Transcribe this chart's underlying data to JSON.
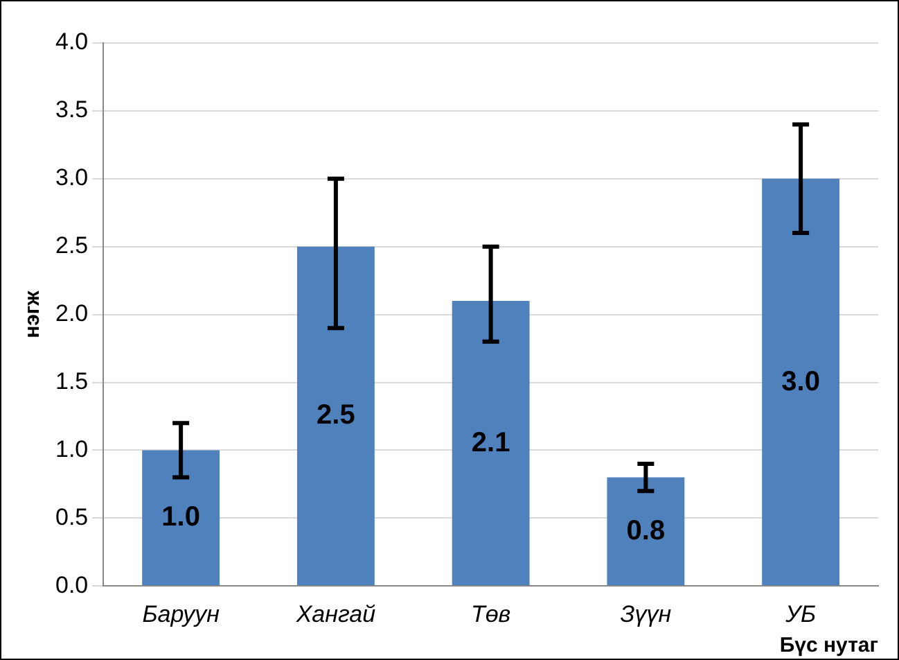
{
  "chart_data": {
    "type": "bar",
    "xlabel": "Бүс нутаг",
    "ylabel": "нэгж",
    "categories": [
      "Баруун",
      "Хангай",
      "Төв",
      "Зүүн",
      "УБ"
    ],
    "values": [
      1.0,
      2.5,
      2.1,
      0.8,
      3.0
    ],
    "errors": [
      [
        0.8,
        1.2
      ],
      [
        1.9,
        3.0
      ],
      [
        1.8,
        2.5
      ],
      [
        0.7,
        0.9
      ],
      [
        2.6,
        3.4
      ]
    ],
    "value_labels": [
      "1.0",
      "2.5",
      "2.1",
      "0.8",
      "3.0"
    ],
    "color": "#4f81bd",
    "ylim": [
      0,
      4
    ],
    "yticks": [
      {
        "value": 0,
        "label": "0.0"
      },
      {
        "value": 0.5,
        "label": "0.5"
      },
      {
        "value": 1,
        "label": "1.0"
      },
      {
        "value": 1.5,
        "label": "1.5"
      },
      {
        "value": 2,
        "label": "2.0"
      },
      {
        "value": 2.5,
        "label": "2.5"
      },
      {
        "value": 3,
        "label": "3.0"
      },
      {
        "value": 3.5,
        "label": "3.5"
      },
      {
        "value": 4,
        "label": "4.0"
      }
    ],
    "grid": "y",
    "legend": false
  }
}
